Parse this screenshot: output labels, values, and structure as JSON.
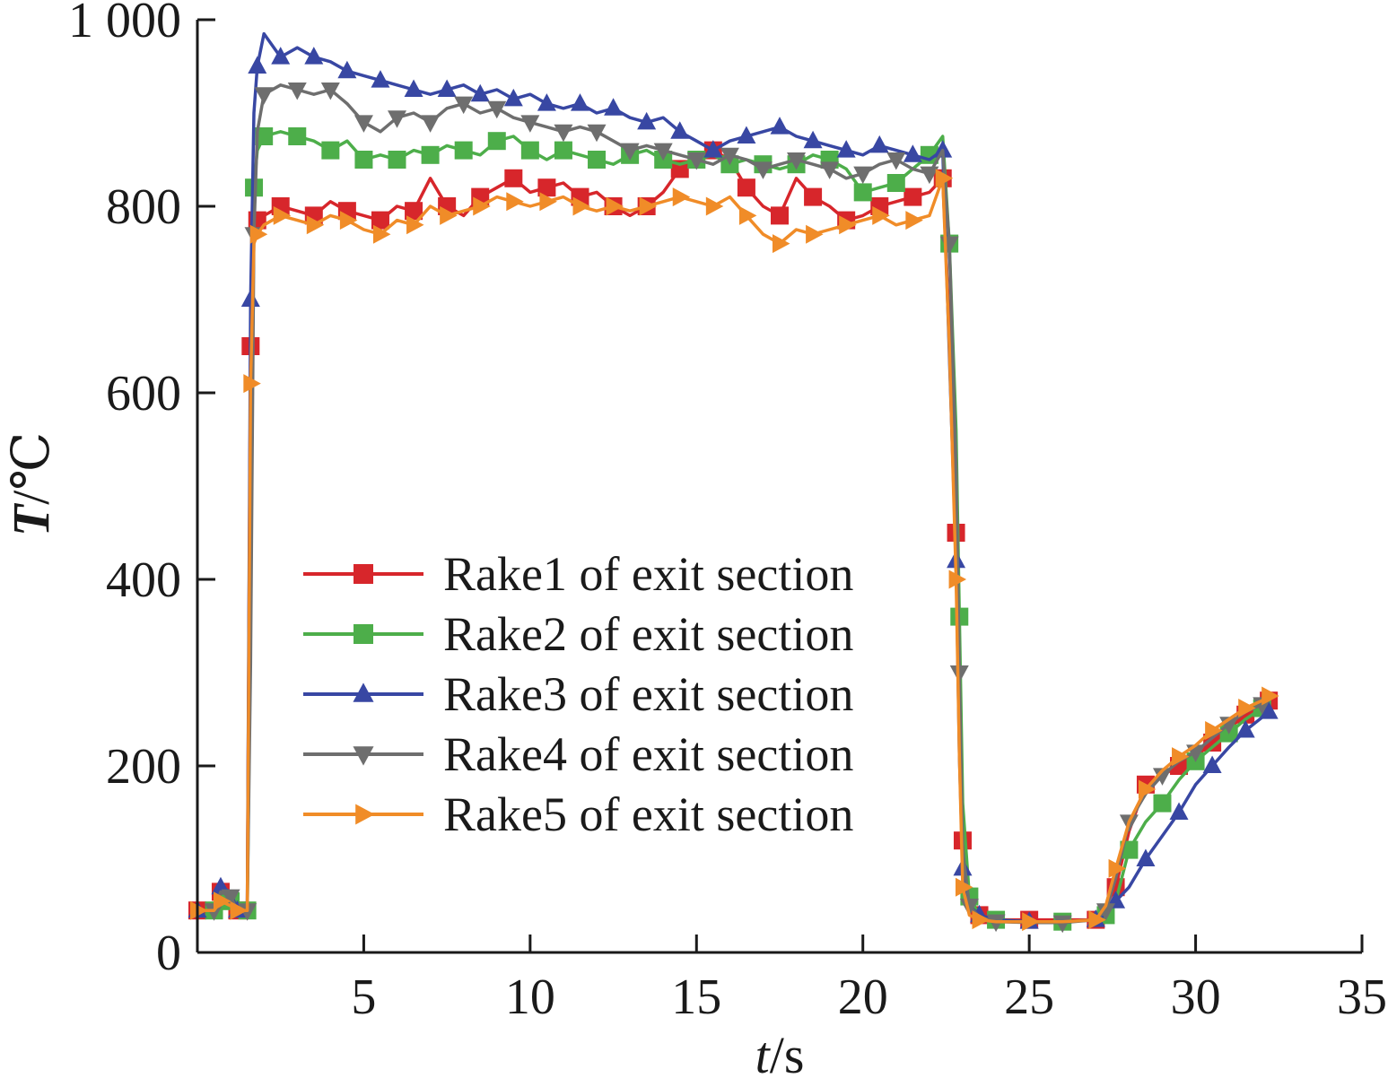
{
  "chart_data": {
    "type": "line",
    "title": "",
    "xlabel_var": "t",
    "xlabel_unit": "/s",
    "ylabel_var": "T",
    "ylabel_unit": "/℃",
    "xlim": [
      0,
      35
    ],
    "ylim": [
      0,
      1000
    ],
    "x_ticks": [
      5,
      10,
      15,
      20,
      25,
      30,
      35
    ],
    "y_ticks": [
      0,
      200,
      400,
      600,
      800,
      1000
    ],
    "y_tick_labels": [
      "0",
      "200",
      "400",
      "600",
      "800",
      "1 000"
    ],
    "grid": false,
    "legend_position": "lower-center",
    "series": [
      {
        "name": "Rake1 of exit section",
        "color": "#d7262b",
        "marker": "square",
        "x": [
          0,
          0.5,
          0.7,
          1.0,
          1.2,
          1.5,
          1.6,
          1.7,
          1.8,
          2.0,
          2.5,
          3.0,
          3.5,
          4.0,
          4.5,
          5.0,
          5.5,
          6.0,
          6.5,
          7.0,
          7.5,
          8.0,
          8.5,
          9.0,
          9.5,
          10.0,
          10.5,
          11.0,
          11.5,
          12.0,
          12.5,
          13.0,
          13.5,
          14.0,
          14.5,
          15.0,
          15.5,
          16.0,
          16.5,
          17.0,
          17.5,
          18.0,
          18.5,
          19.0,
          19.5,
          20.0,
          20.5,
          21.0,
          21.5,
          22.0,
          22.4,
          22.6,
          22.8,
          22.9,
          23.0,
          23.2,
          23.5,
          24.0,
          25.0,
          26.0,
          27.0,
          27.3,
          27.6,
          28.0,
          28.5,
          29.0,
          29.5,
          30.0,
          30.5,
          31.0,
          31.5,
          32.0,
          32.2
        ],
        "values": [
          45,
          45,
          65,
          60,
          45,
          50,
          650,
          790,
          785,
          790,
          800,
          795,
          790,
          805,
          795,
          790,
          785,
          800,
          795,
          830,
          800,
          790,
          810,
          820,
          830,
          815,
          820,
          825,
          810,
          815,
          800,
          790,
          800,
          815,
          840,
          850,
          860,
          850,
          820,
          800,
          790,
          830,
          810,
          800,
          785,
          790,
          800,
          805,
          810,
          815,
          830,
          670,
          450,
          290,
          120,
          60,
          40,
          35,
          35,
          35,
          35,
          50,
          70,
          130,
          180,
          190,
          200,
          210,
          225,
          240,
          255,
          265,
          270
        ]
      },
      {
        "name": "Rake2 of exit section",
        "color": "#4dae4a",
        "marker": "square",
        "x": [
          0,
          0.5,
          0.7,
          1.0,
          1.2,
          1.5,
          1.6,
          1.7,
          1.8,
          2.0,
          2.5,
          3.0,
          3.5,
          4.0,
          4.5,
          5.0,
          5.5,
          6.0,
          6.5,
          7.0,
          7.5,
          8.0,
          8.5,
          9.0,
          9.5,
          10.0,
          10.5,
          11.0,
          11.5,
          12.0,
          12.5,
          13.0,
          13.5,
          14.0,
          14.5,
          15.0,
          15.5,
          16.0,
          16.5,
          17.0,
          17.5,
          18.0,
          18.5,
          19.0,
          19.5,
          20.0,
          20.5,
          21.0,
          21.5,
          22.0,
          22.4,
          22.6,
          22.8,
          22.9,
          23.0,
          23.2,
          23.5,
          24.0,
          25.0,
          26.0,
          27.0,
          27.3,
          27.6,
          28.0,
          28.5,
          29.0,
          29.5,
          30.0,
          30.5,
          31.0,
          31.5,
          32.0,
          32.2
        ],
        "values": [
          45,
          45,
          60,
          55,
          45,
          45,
          360,
          820,
          860,
          875,
          880,
          875,
          870,
          860,
          870,
          850,
          855,
          850,
          860,
          855,
          865,
          860,
          855,
          870,
          875,
          860,
          850,
          860,
          855,
          850,
          845,
          855,
          860,
          850,
          845,
          850,
          855,
          845,
          850,
          845,
          840,
          845,
          855,
          850,
          840,
          815,
          820,
          825,
          840,
          855,
          875,
          760,
          560,
          360,
          160,
          60,
          40,
          35,
          33,
          33,
          35,
          40,
          55,
          110,
          140,
          160,
          185,
          205,
          220,
          235,
          250,
          262,
          268
        ]
      },
      {
        "name": "Rake3 of exit section",
        "color": "#3847a3",
        "marker": "triangle-up",
        "x": [
          0,
          0.5,
          0.7,
          1.0,
          1.2,
          1.5,
          1.6,
          1.7,
          1.8,
          2.0,
          2.5,
          3.0,
          3.5,
          4.0,
          4.5,
          5.0,
          5.5,
          6.0,
          6.5,
          7.0,
          7.5,
          8.0,
          8.5,
          9.0,
          9.5,
          10.0,
          10.5,
          11.0,
          11.5,
          12.0,
          12.5,
          13.0,
          13.5,
          14.0,
          14.5,
          15.0,
          15.5,
          16.0,
          16.5,
          17.0,
          17.5,
          18.0,
          18.5,
          19.0,
          19.5,
          20.0,
          20.5,
          21.0,
          21.5,
          22.0,
          22.4,
          22.6,
          22.8,
          22.9,
          23.0,
          23.2,
          23.5,
          24.0,
          25.0,
          26.0,
          27.0,
          27.3,
          27.6,
          28.0,
          28.5,
          29.0,
          29.5,
          30.0,
          30.5,
          31.0,
          31.5,
          32.0,
          32.2
        ],
        "values": [
          45,
          45,
          70,
          65,
          45,
          50,
          700,
          900,
          950,
          985,
          960,
          970,
          960,
          955,
          945,
          940,
          935,
          930,
          925,
          920,
          925,
          930,
          920,
          925,
          915,
          920,
          910,
          905,
          910,
          900,
          905,
          895,
          890,
          895,
          880,
          870,
          860,
          870,
          875,
          880,
          885,
          875,
          870,
          865,
          860,
          855,
          865,
          860,
          855,
          850,
          860,
          640,
          420,
          210,
          90,
          50,
          40,
          35,
          33,
          33,
          35,
          40,
          55,
          70,
          100,
          125,
          150,
          180,
          200,
          220,
          238,
          252,
          258
        ]
      },
      {
        "name": "Rake4 of exit section",
        "color": "#6e6e6e",
        "marker": "triangle-down",
        "x": [
          0,
          0.5,
          0.7,
          1.0,
          1.2,
          1.5,
          1.6,
          1.7,
          1.8,
          2.0,
          2.5,
          3.0,
          3.5,
          4.0,
          4.5,
          5.0,
          5.5,
          6.0,
          6.5,
          7.0,
          7.5,
          8.0,
          8.5,
          9.0,
          9.5,
          10.0,
          10.5,
          11.0,
          11.5,
          12.0,
          12.5,
          13.0,
          13.5,
          14.0,
          14.5,
          15.0,
          15.5,
          16.0,
          16.5,
          17.0,
          17.5,
          18.0,
          18.5,
          19.0,
          19.5,
          20.0,
          20.5,
          21.0,
          21.5,
          22.0,
          22.4,
          22.6,
          22.8,
          22.9,
          23.0,
          23.2,
          23.5,
          24.0,
          25.0,
          26.0,
          27.0,
          27.3,
          27.6,
          28.0,
          28.5,
          29.0,
          29.5,
          30.0,
          30.5,
          31.0,
          31.5,
          32.0,
          32.2
        ],
        "values": [
          45,
          45,
          65,
          60,
          45,
          45,
          310,
          770,
          880,
          920,
          930,
          925,
          920,
          925,
          910,
          890,
          880,
          895,
          900,
          890,
          905,
          910,
          900,
          905,
          895,
          890,
          885,
          880,
          885,
          880,
          870,
          860,
          865,
          860,
          855,
          850,
          845,
          855,
          850,
          840,
          845,
          850,
          845,
          840,
          830,
          835,
          845,
          850,
          840,
          835,
          860,
          760,
          520,
          300,
          110,
          50,
          38,
          33,
          32,
          32,
          35,
          45,
          80,
          140,
          170,
          190,
          205,
          215,
          230,
          245,
          258,
          266,
          270
        ]
      },
      {
        "name": "Rake5 of exit section",
        "color": "#f08c28",
        "marker": "triangle-right",
        "x": [
          0,
          0.5,
          0.7,
          1.0,
          1.2,
          1.5,
          1.6,
          1.7,
          1.8,
          2.0,
          2.5,
          3.0,
          3.5,
          4.0,
          4.5,
          5.0,
          5.5,
          6.0,
          6.5,
          7.0,
          7.5,
          8.0,
          8.5,
          9.0,
          9.5,
          10.0,
          10.5,
          11.0,
          11.5,
          12.0,
          12.5,
          13.0,
          13.5,
          14.0,
          14.5,
          15.0,
          15.5,
          16.0,
          16.5,
          17.0,
          17.5,
          18.0,
          18.5,
          19.0,
          19.5,
          20.0,
          20.5,
          21.0,
          21.5,
          22.0,
          22.4,
          22.6,
          22.8,
          22.9,
          23.0,
          23.2,
          23.5,
          24.0,
          25.0,
          26.0,
          27.0,
          27.3,
          27.6,
          28.0,
          28.5,
          29.0,
          29.5,
          30.0,
          30.5,
          31.0,
          31.5,
          32.0,
          32.2
        ],
        "values": [
          45,
          45,
          55,
          50,
          45,
          45,
          610,
          760,
          770,
          780,
          790,
          785,
          780,
          790,
          785,
          775,
          770,
          785,
          780,
          800,
          790,
          795,
          800,
          810,
          805,
          800,
          805,
          810,
          800,
          795,
          800,
          795,
          800,
          805,
          810,
          805,
          800,
          810,
          790,
          770,
          760,
          775,
          770,
          775,
          780,
          785,
          790,
          780,
          785,
          790,
          830,
          650,
          400,
          210,
          70,
          40,
          35,
          33,
          33,
          33,
          35,
          50,
          90,
          140,
          175,
          195,
          210,
          222,
          238,
          250,
          262,
          270,
          275
        ]
      }
    ]
  }
}
